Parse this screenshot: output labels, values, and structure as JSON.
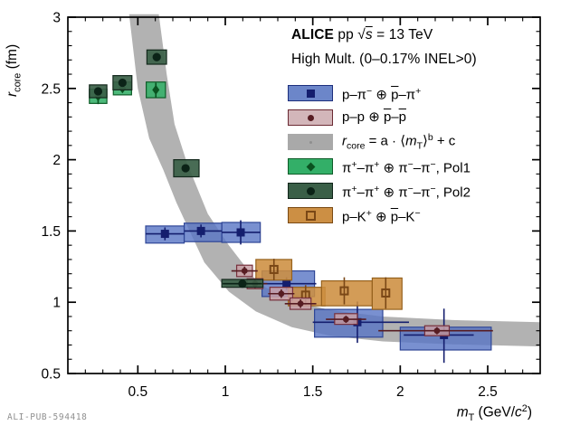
{
  "watermark": "ALI-PUB-594418",
  "title": {
    "line1_parts": [
      {
        "b": "ALICE"
      },
      {
        "n": " pp "
      },
      {
        "n": "√"
      },
      {
        "oli": "s"
      },
      {
        "n": " = 13 TeV"
      }
    ],
    "line2_parts": [
      {
        "n": "High Mult. (0–0.17% INEL>0)"
      }
    ]
  },
  "legend": {
    "items": [
      {
        "id": "p-pi",
        "marker": "square",
        "marker_color": "#141e6e",
        "swatch_fill": "#6c86c9",
        "swatch_edge": "#1d2f7c",
        "label_parts": [
          {
            "n": "p–π"
          },
          {
            "sup": "−"
          },
          {
            "n": " ⊕ "
          },
          {
            "ol": "p"
          },
          {
            "n": "–π"
          },
          {
            "sup": "+"
          }
        ]
      },
      {
        "id": "p-p",
        "marker": "circle",
        "marker_color": "#571c22",
        "swatch_fill": "#d3b6ba",
        "swatch_edge": "#6b2a33",
        "label_parts": [
          {
            "n": "p–p ⊕ "
          },
          {
            "ol": "p"
          },
          {
            "n": "–"
          },
          {
            "ol": "p"
          }
        ]
      },
      {
        "id": "fit-band",
        "marker": "dot",
        "marker_color": "#8f8f8f",
        "swatch_fill": "#a9a9a9",
        "swatch_edge": "#a9a9a9",
        "label_parts": [
          {
            "i": "r"
          },
          {
            "sub": "core"
          },
          {
            "n": " = a · ⟨"
          },
          {
            "i": "m"
          },
          {
            "sub": "T"
          },
          {
            "n": "⟩"
          },
          {
            "sup": "b"
          },
          {
            "n": " + c"
          }
        ]
      },
      {
        "id": "pi-pi-pol1",
        "marker": "diamond",
        "marker_color": "#0a5220",
        "swatch_fill": "#33af68",
        "swatch_edge": "#0e5c28",
        "label_parts": [
          {
            "n": "π"
          },
          {
            "sup": "+"
          },
          {
            "n": "–π"
          },
          {
            "sup": "+"
          },
          {
            "n": " ⊕ π"
          },
          {
            "sup": "−"
          },
          {
            "n": "–π"
          },
          {
            "sup": "−"
          },
          {
            "n": ", Pol1"
          }
        ]
      },
      {
        "id": "pi-pi-pol2",
        "marker": "circle-lg",
        "marker_color": "#0b2317",
        "swatch_fill": "#3a5f47",
        "swatch_edge": "#10241a",
        "label_parts": [
          {
            "n": "π"
          },
          {
            "sup": "+"
          },
          {
            "n": "–π"
          },
          {
            "sup": "+"
          },
          {
            "n": " ⊕ π"
          },
          {
            "sup": "−"
          },
          {
            "n": "–π"
          },
          {
            "sup": "−"
          },
          {
            "n": ", Pol2"
          }
        ]
      },
      {
        "id": "p-K",
        "marker": "open-square",
        "marker_color": "#7a4716",
        "swatch_fill": "#cc8f44",
        "swatch_edge": "#7a4a14",
        "label_parts": [
          {
            "n": "p–K"
          },
          {
            "sup": "+"
          },
          {
            "n": " ⊕ "
          },
          {
            "ol": "p"
          },
          {
            "n": "–K"
          },
          {
            "sup": "−"
          }
        ]
      }
    ]
  },
  "chart_data": {
    "type": "scatter",
    "title": "ALICE pp sqrt(s) = 13 TeV, High Mult. (0-0.17% INEL>0)",
    "xlabel_parts": [
      {
        "i": "m"
      },
      {
        "sub": "T"
      },
      {
        "n": " (GeV/"
      },
      {
        "i": "c"
      },
      {
        "sup": "2"
      },
      {
        "n": ")"
      }
    ],
    "ylabel_parts": [
      {
        "i": "r"
      },
      {
        "sub": "core"
      },
      {
        "n": " (fm)"
      }
    ],
    "x_range": [
      0.1,
      2.8
    ],
    "y_range": [
      0.5,
      3.0
    ],
    "x_ticks": {
      "major": [
        0.5,
        1.0,
        1.5,
        2.0,
        2.5
      ],
      "labels": [
        "0.5",
        "1",
        "1.5",
        "2",
        "2.5"
      ],
      "minor_step": 0.1
    },
    "y_ticks": {
      "major": [
        0.5,
        1.0,
        1.5,
        2.0,
        2.5,
        3.0
      ],
      "labels": [
        "0.5",
        "1",
        "1.5",
        "2",
        "2.5",
        "3"
      ],
      "minor_step": 0.1
    },
    "grid": false,
    "legend_position": "top-right",
    "band": {
      "name": "fit r_core = a*<mT>^b + c",
      "color": "#aeaeae",
      "upper": [
        [
          0.62,
          3.02
        ],
        [
          0.665,
          2.6
        ],
        [
          0.71,
          2.25
        ],
        [
          0.78,
          1.98
        ],
        [
          0.9,
          1.62
        ],
        [
          1.02,
          1.4
        ],
        [
          1.19,
          1.13
        ],
        [
          1.38,
          1.01
        ],
        [
          1.6,
          0.945
        ],
        [
          1.9,
          0.9
        ],
        [
          2.3,
          0.875
        ],
        [
          2.8,
          0.86
        ]
      ],
      "lower": [
        [
          0.45,
          3.02
        ],
        [
          0.5,
          2.5
        ],
        [
          0.565,
          2.15
        ],
        [
          0.645,
          1.93
        ],
        [
          0.72,
          1.7
        ],
        [
          0.79,
          1.515
        ],
        [
          0.88,
          1.28
        ],
        [
          1.02,
          1.075
        ],
        [
          1.175,
          0.935
        ],
        [
          1.38,
          0.825
        ],
        [
          1.6,
          0.765
        ],
        [
          1.9,
          0.725
        ],
        [
          2.3,
          0.705
        ],
        [
          2.8,
          0.69
        ]
      ]
    },
    "series": [
      {
        "name": "p-pi- (+) pbar-pi+",
        "marker": "square",
        "marker_color": "#141e6e",
        "box_fill": "rgba(88,116,196,0.80)",
        "box_edge": "#2f4696",
        "points": [
          {
            "x": 0.655,
            "y": 1.48,
            "box": [
              0.545,
              1.415,
              0.765,
              1.535
            ],
            "xerr": [
              0.545,
              0.765
            ],
            "yerr": [
              1.435,
              1.525
            ]
          },
          {
            "x": 0.861,
            "y": 1.5,
            "box": [
              0.765,
              1.425,
              0.98,
              1.555
            ],
            "xerr": [
              0.765,
              0.98
            ],
            "yerr": [
              1.455,
              1.545
            ]
          },
          {
            "x": 1.088,
            "y": 1.49,
            "box": [
              0.98,
              1.42,
              1.2,
              1.56
            ],
            "xerr": [
              0.98,
              1.2
            ],
            "yerr": [
              1.405,
              1.575
            ]
          },
          {
            "x": 1.35,
            "y": 1.13,
            "box": [
              1.21,
              1.04,
              1.51,
              1.22
            ],
            "xerr": [
              1.19,
              1.52
            ],
            "yerr": [
              1.085,
              1.175
            ]
          },
          {
            "x": 1.755,
            "y": 0.86,
            "box": [
              1.51,
              0.755,
              1.9,
              0.95
            ],
            "xerr": [
              1.5,
              2.05
            ],
            "yerr": [
              0.715,
              1.005
            ]
          },
          {
            "x": 2.25,
            "y": 0.77,
            "box": [
              2.0,
              0.665,
              2.52,
              0.825
            ],
            "xerr": [
              2.02,
              2.42
            ],
            "yerr": [
              0.575,
              0.955
            ]
          }
        ]
      },
      {
        "name": "p-K+ (+) pbar-K-",
        "marker": "open-square",
        "marker_color": "#7a4716",
        "box_fill": "rgba(205,142,64,0.88)",
        "box_edge": "#96621d",
        "points": [
          {
            "x": 1.278,
            "y": 1.23,
            "box": [
              1.175,
              1.155,
              1.38,
              1.3
            ],
            "yerr": [
              1.155,
              1.305
            ]
          },
          {
            "x": 1.459,
            "y": 1.05,
            "box": [
              1.36,
              0.975,
              1.57,
              1.105
            ],
            "yerr": [
              0.98,
              1.12
            ]
          },
          {
            "x": 1.68,
            "y": 1.08,
            "box": [
              1.55,
              0.975,
              1.84,
              1.15
            ],
            "yerr": [
              0.985,
              1.175
            ]
          },
          {
            "x": 1.917,
            "y": 1.065,
            "box": [
              1.84,
              0.95,
              2.01,
              1.17
            ],
            "yerr": [
              0.955,
              1.175
            ]
          }
        ]
      },
      {
        "name": "p-p (+) pbar-pbar",
        "marker": "circle-small",
        "marker_color": "#571c22",
        "box_fill": "rgba(201,160,166,0.85)",
        "box_edge": "#77303c",
        "points": [
          {
            "x": 1.11,
            "y": 1.22,
            "box": [
              1.065,
              1.18,
              1.155,
              1.26
            ],
            "xerr": [
              1.035,
              1.185
            ],
            "yerr": [
              1.19,
              1.25
            ]
          },
          {
            "x": 1.17,
            "y": 1.13,
            "box": [
              1.125,
              1.095,
              1.215,
              1.165
            ],
            "xerr": [
              1.1,
              1.24
            ],
            "yerr": [
              1.1,
              1.16
            ]
          },
          {
            "x": 1.32,
            "y": 1.06,
            "box": [
              1.255,
              1.015,
              1.385,
              1.105
            ],
            "xerr": [
              1.245,
              1.395
            ],
            "yerr": [
              1.03,
              1.09
            ]
          },
          {
            "x": 1.43,
            "y": 0.99,
            "box": [
              1.37,
              0.95,
              1.49,
              1.03
            ],
            "xerr": [
              1.34,
              1.52
            ],
            "yerr": [
              0.96,
              1.02
            ]
          },
          {
            "x": 1.69,
            "y": 0.88,
            "box": [
              1.625,
              0.845,
              1.755,
              0.92
            ],
            "xerr": [
              1.575,
              1.805
            ],
            "yerr": [
              0.855,
              0.905
            ]
          },
          {
            "x": 2.21,
            "y": 0.8,
            "box": [
              2.14,
              0.765,
              2.28,
              0.835
            ],
            "xerr": [
              1.875,
              2.53
            ],
            "yerr": [
              0.775,
              0.825
            ]
          }
        ]
      },
      {
        "name": "pi+-pi+ (+) pi--pi-, Pol1",
        "marker": "diamond",
        "marker_color": "#0a5220",
        "box_fill": "rgba(51,175,104,0.88)",
        "box_edge": "#0e5c28",
        "points": [
          {
            "x": 0.273,
            "y": 2.445,
            "box": [
              0.223,
              2.395,
              0.323,
              2.495
            ],
            "yerr": [
              2.39,
              2.49
            ]
          },
          {
            "x": 0.412,
            "y": 2.5,
            "box": [
              0.36,
              2.455,
              0.464,
              2.545
            ]
          },
          {
            "x": 0.603,
            "y": 2.49,
            "box": [
              0.548,
              2.435,
              0.658,
              2.545
            ],
            "yerr": [
              2.435,
              2.54
            ]
          }
        ]
      },
      {
        "name": "pi+-pi+ (+) pi--pi-, Pol2",
        "marker": "circle",
        "marker_color": "#0b2317",
        "box_fill": "rgba(58,95,71,0.92)",
        "box_edge": "#13281c",
        "points": [
          {
            "x": 0.273,
            "y": 2.48,
            "box": [
              0.223,
              2.435,
              0.323,
              2.525
            ]
          },
          {
            "x": 0.412,
            "y": 2.54,
            "box": [
              0.358,
              2.49,
              0.466,
              2.59
            ]
          },
          {
            "x": 0.608,
            "y": 2.72,
            "box": [
              0.552,
              2.67,
              0.664,
              2.77
            ]
          },
          {
            "x": 0.773,
            "y": 1.94,
            "box": [
              0.705,
              1.88,
              0.85,
              2.0
            ]
          },
          {
            "x": 1.098,
            "y": 1.13,
            "box": [
              0.98,
              1.105,
              1.215,
              1.16
            ],
            "xerr": [
              0.985,
              1.21
            ]
          }
        ]
      }
    ]
  },
  "frame_color": "#000000"
}
